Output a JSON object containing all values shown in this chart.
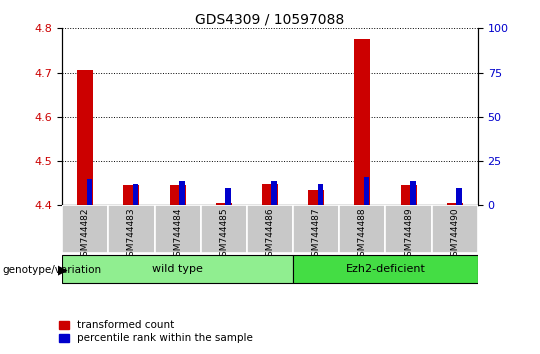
{
  "title": "GDS4309 / 10597088",
  "samples": [
    "GSM744482",
    "GSM744483",
    "GSM744484",
    "GSM744485",
    "GSM744486",
    "GSM744487",
    "GSM744488",
    "GSM744489",
    "GSM744490"
  ],
  "transformed_count": [
    4.705,
    4.445,
    4.447,
    4.405,
    4.448,
    4.435,
    4.775,
    4.447,
    4.405
  ],
  "percentile_rank": [
    15,
    12,
    14,
    10,
    14,
    12,
    16,
    14,
    10
  ],
  "ylim_left": [
    4.4,
    4.8
  ],
  "ylim_right": [
    0,
    100
  ],
  "yticks_left": [
    4.4,
    4.5,
    4.6,
    4.7,
    4.8
  ],
  "yticks_right": [
    0,
    25,
    50,
    75,
    100
  ],
  "groups": [
    {
      "label": "wild type",
      "indices": [
        0,
        1,
        2,
        3,
        4
      ],
      "color": "#90EE90"
    },
    {
      "label": "Ezh2-deficient",
      "indices": [
        5,
        6,
        7,
        8
      ],
      "color": "#44DD44"
    }
  ],
  "group_label_prefix": "genotype/variation",
  "bar_color_red": "#CC0000",
  "bar_color_blue": "#0000CC",
  "red_bar_width": 0.35,
  "blue_bar_width": 0.12,
  "background_plot": "#FFFFFF",
  "tick_area_color": "#C8C8C8",
  "grid_color": "#000000",
  "left_axis_color": "#CC0000",
  "right_axis_color": "#0000CC"
}
